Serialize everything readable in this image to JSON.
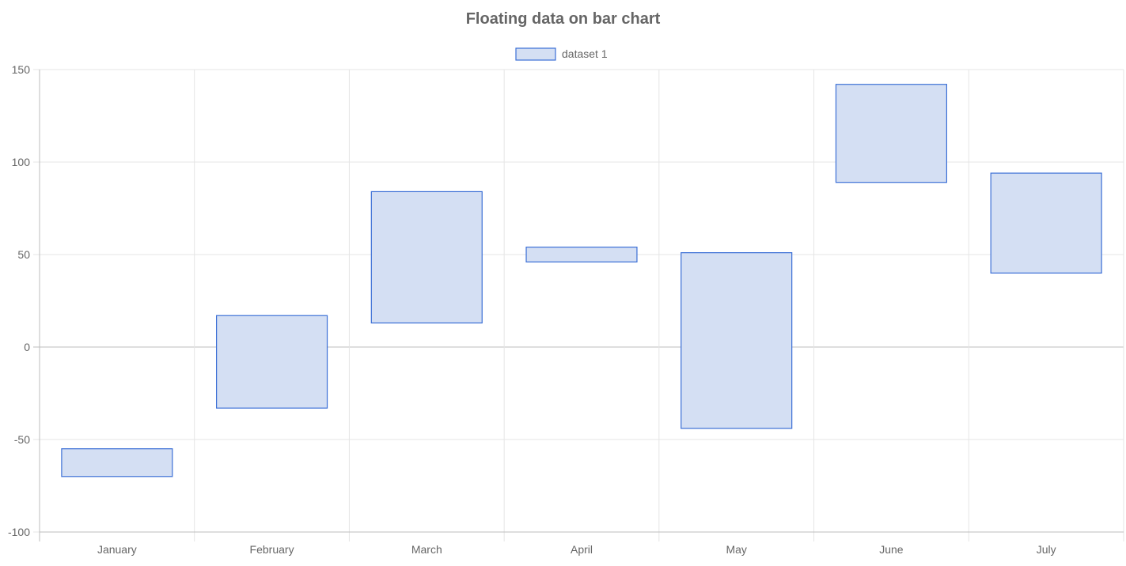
{
  "chart_data": {
    "type": "bar",
    "subtype": "floating",
    "title": "Floating data on bar chart",
    "legend": {
      "position": "top",
      "entries": [
        "dataset 1"
      ]
    },
    "categories": [
      "January",
      "February",
      "March",
      "April",
      "May",
      "June",
      "July"
    ],
    "series": [
      {
        "name": "dataset 1",
        "ranges": [
          [
            -70,
            -55
          ],
          [
            -33,
            17
          ],
          [
            13,
            84
          ],
          [
            46,
            54
          ],
          [
            -44,
            51
          ],
          [
            89,
            142
          ],
          [
            40,
            94
          ]
        ]
      }
    ],
    "ylim": [
      -100,
      150
    ],
    "yticks": [
      150,
      100,
      50,
      0,
      -50,
      -100
    ],
    "grid": true,
    "colors": {
      "bar_fill": "#d4dff3",
      "bar_stroke": "#3b6fd6",
      "grid": "#e5e5e5",
      "zero_line": "#bdbdbd",
      "text": "#666666",
      "title": "#666666"
    }
  }
}
